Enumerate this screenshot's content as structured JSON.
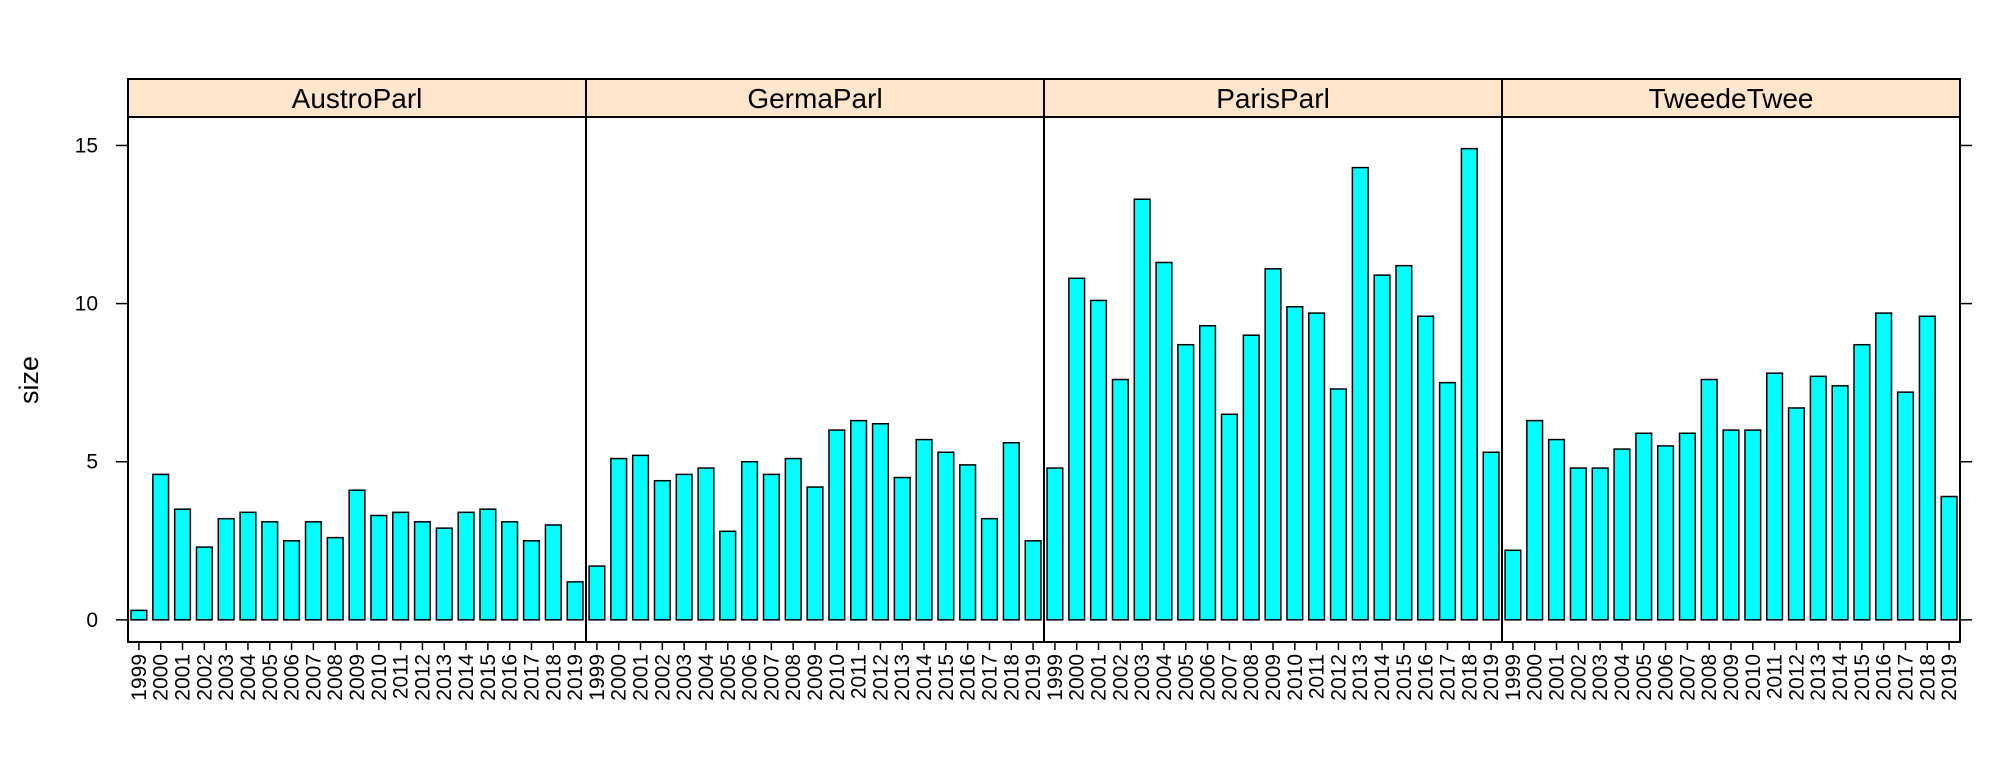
{
  "chart_data": {
    "type": "bar",
    "ylabel": "size",
    "ylim": [
      -0.7,
      15.9
    ],
    "yticks": [
      0,
      5,
      10,
      15
    ],
    "categories": [
      "1999",
      "2000",
      "2001",
      "2002",
      "2003",
      "2004",
      "2005",
      "2006",
      "2007",
      "2008",
      "2009",
      "2010",
      "2011",
      "2012",
      "2013",
      "2014",
      "2015",
      "2016",
      "2017",
      "2018",
      "2019"
    ],
    "panels": [
      {
        "name": "AustroParl",
        "values": [
          0.3,
          4.6,
          3.5,
          2.3,
          3.2,
          3.4,
          3.1,
          2.5,
          3.1,
          2.6,
          4.1,
          3.3,
          3.4,
          3.1,
          2.9,
          3.4,
          3.5,
          3.1,
          2.5,
          3.0,
          1.2
        ]
      },
      {
        "name": "GermaParl",
        "values": [
          1.7,
          5.1,
          5.2,
          4.4,
          4.6,
          4.8,
          2.8,
          5.0,
          4.6,
          5.1,
          4.2,
          6.0,
          6.3,
          6.2,
          4.5,
          5.7,
          5.3,
          4.9,
          3.2,
          5.6,
          2.5
        ]
      },
      {
        "name": "ParisParl",
        "values": [
          4.8,
          10.8,
          10.1,
          7.6,
          13.3,
          11.3,
          8.7,
          9.3,
          6.5,
          9.0,
          11.1,
          9.9,
          9.7,
          7.3,
          14.3,
          10.9,
          11.2,
          9.6,
          7.5,
          14.9,
          5.3
        ]
      },
      {
        "name": "TweedeTwee",
        "values": [
          2.2,
          6.3,
          5.7,
          4.8,
          4.8,
          5.4,
          5.9,
          5.5,
          5.9,
          7.6,
          6.0,
          6.0,
          7.8,
          6.7,
          7.7,
          7.4,
          8.7,
          9.7,
          7.2,
          9.6,
          3.9
        ]
      }
    ],
    "colors": {
      "bar_fill": "#00FFFF",
      "strip_fill": "#FFE5CC",
      "outline": "#000000"
    },
    "grid": false,
    "legend": "none"
  }
}
